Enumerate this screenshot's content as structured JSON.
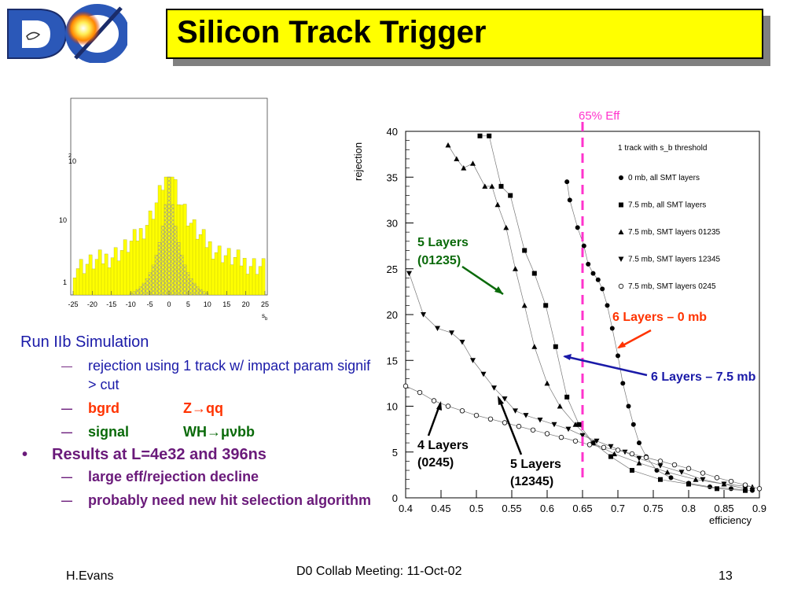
{
  "logo": {
    "text": "DØ",
    "icon": "d0-logo-icon"
  },
  "title": "Silicon Track Trigger",
  "histogram": {
    "ytick_labels": [
      "10",
      "10",
      "1"
    ],
    "ytick_top_exp": "2",
    "xtick_labels": [
      "-25",
      "-20",
      "-15",
      "-10",
      "-5",
      "0",
      "5",
      "10",
      "15",
      "20",
      "25"
    ],
    "xlabel": "s",
    "xlabel_sub": "b"
  },
  "bullets": {
    "header": "Run IIb Simulation",
    "sub1": "rejection using 1 track w/ impact param signif > cut",
    "sub2_label": "bgrd",
    "sub2_value": "Z→qq",
    "sub3_label": "signal",
    "sub3_value": "WH→μνbb",
    "main2": "Results at L=4e32 and 396ns",
    "sub4": "large eff/rejection decline",
    "sub5": "probably need new hit selection algorithm"
  },
  "footer": {
    "author": "H.Evans",
    "meeting": "D0 Collab Meeting: 11-Oct-02",
    "page": "13"
  },
  "annotations": {
    "eff65": "65% Eff",
    "five_01235": [
      "5 Layers",
      "(01235)"
    ],
    "six_0mb": "6 Layers – 0 mb",
    "six_75mb": "6 Layers – 7.5 mb",
    "four_0245": [
      "4 Layers",
      "(0245)"
    ],
    "five_12345": [
      "5 Layers",
      "(12345)"
    ]
  },
  "chart_data": {
    "type": "scatter",
    "xlabel": "efficiency",
    "ylabel": "rejection",
    "xlim": [
      0.4,
      0.9
    ],
    "ylim": [
      0,
      40
    ],
    "xticks": [
      "0.4",
      "0.45",
      "0.5",
      "0.55",
      "0.6",
      "0.65",
      "0.7",
      "0.75",
      "0.8",
      "0.85",
      "0.9"
    ],
    "yticks": [
      "0",
      "5",
      "10",
      "15",
      "20",
      "25",
      "30",
      "35",
      "40"
    ],
    "legend_title": "1 track with s_b threshold",
    "legend_placement": "top-right",
    "grid": false,
    "series": [
      {
        "name": "0 mb, all SMT layers",
        "marker": "circle",
        "x": [
          0.628,
          0.632,
          0.643,
          0.652,
          0.658,
          0.665,
          0.672,
          0.678,
          0.685,
          0.692,
          0.7,
          0.707,
          0.715,
          0.722,
          0.73,
          0.74,
          0.755,
          0.775,
          0.8,
          0.83,
          0.86,
          0.89
        ],
        "y": [
          34.5,
          32.5,
          29.5,
          27.5,
          25.5,
          24.5,
          23.8,
          22.8,
          21.0,
          18.5,
          15.5,
          12.5,
          10.0,
          8.0,
          6.0,
          4.5,
          3.0,
          2.2,
          1.6,
          1.2,
          1.0,
          0.8
        ]
      },
      {
        "name": "7.5 mb, all SMT layers",
        "marker": "square",
        "x": [
          0.505,
          0.518,
          0.535,
          0.548,
          0.568,
          0.582,
          0.598,
          0.612,
          0.628,
          0.645,
          0.665,
          0.69,
          0.72,
          0.76,
          0.8,
          0.84,
          0.88
        ],
        "y": [
          39.5,
          39.5,
          34.0,
          33.0,
          27.0,
          24.5,
          21.0,
          16.5,
          11.0,
          8.0,
          6.0,
          4.5,
          3.0,
          2.0,
          1.5,
          1.0,
          0.8
        ]
      },
      {
        "name": "7.5 mb, SMT layers 01235",
        "marker": "triangle-up",
        "x": [
          0.46,
          0.472,
          0.482,
          0.495,
          0.512,
          0.522,
          0.53,
          0.542,
          0.555,
          0.568,
          0.582,
          0.6,
          0.618,
          0.64,
          0.665,
          0.695,
          0.73,
          0.77,
          0.81,
          0.85,
          0.89
        ],
        "y": [
          38.5,
          37.0,
          36.0,
          36.5,
          34.0,
          34.0,
          32.0,
          29.5,
          25.0,
          21.0,
          16.5,
          12.5,
          10.0,
          8.0,
          6.0,
          4.8,
          3.8,
          2.8,
          2.0,
          1.5,
          1.2
        ]
      },
      {
        "name": "7.5 mb, SMT layers 12345",
        "marker": "triangle-down",
        "x": [
          0.405,
          0.425,
          0.445,
          0.465,
          0.48,
          0.495,
          0.51,
          0.525,
          0.54,
          0.555,
          0.57,
          0.59,
          0.61,
          0.63,
          0.65,
          0.67,
          0.69,
          0.71,
          0.73,
          0.76,
          0.79,
          0.82,
          0.85,
          0.88
        ],
        "y": [
          24.5,
          20.0,
          18.5,
          18.0,
          17.0,
          15.0,
          13.5,
          12.0,
          10.8,
          9.5,
          9.0,
          8.5,
          8.0,
          7.5,
          6.8,
          6.2,
          5.6,
          5.0,
          4.3,
          3.5,
          2.8,
          2.0,
          1.5,
          1.0
        ]
      },
      {
        "name": "7.5 mb, SMT layers 0245",
        "marker": "circle-open",
        "x": [
          0.4,
          0.42,
          0.44,
          0.46,
          0.48,
          0.5,
          0.52,
          0.54,
          0.56,
          0.58,
          0.6,
          0.62,
          0.64,
          0.66,
          0.68,
          0.7,
          0.72,
          0.74,
          0.76,
          0.78,
          0.8,
          0.82,
          0.84,
          0.86,
          0.88,
          0.9
        ],
        "y": [
          12.2,
          11.5,
          10.6,
          10.0,
          9.5,
          9.0,
          8.6,
          8.2,
          7.8,
          7.4,
          7.0,
          6.6,
          6.2,
          5.8,
          5.5,
          5.2,
          4.8,
          4.4,
          4.0,
          3.6,
          3.2,
          2.7,
          2.2,
          1.8,
          1.4,
          1.0
        ]
      }
    ]
  }
}
